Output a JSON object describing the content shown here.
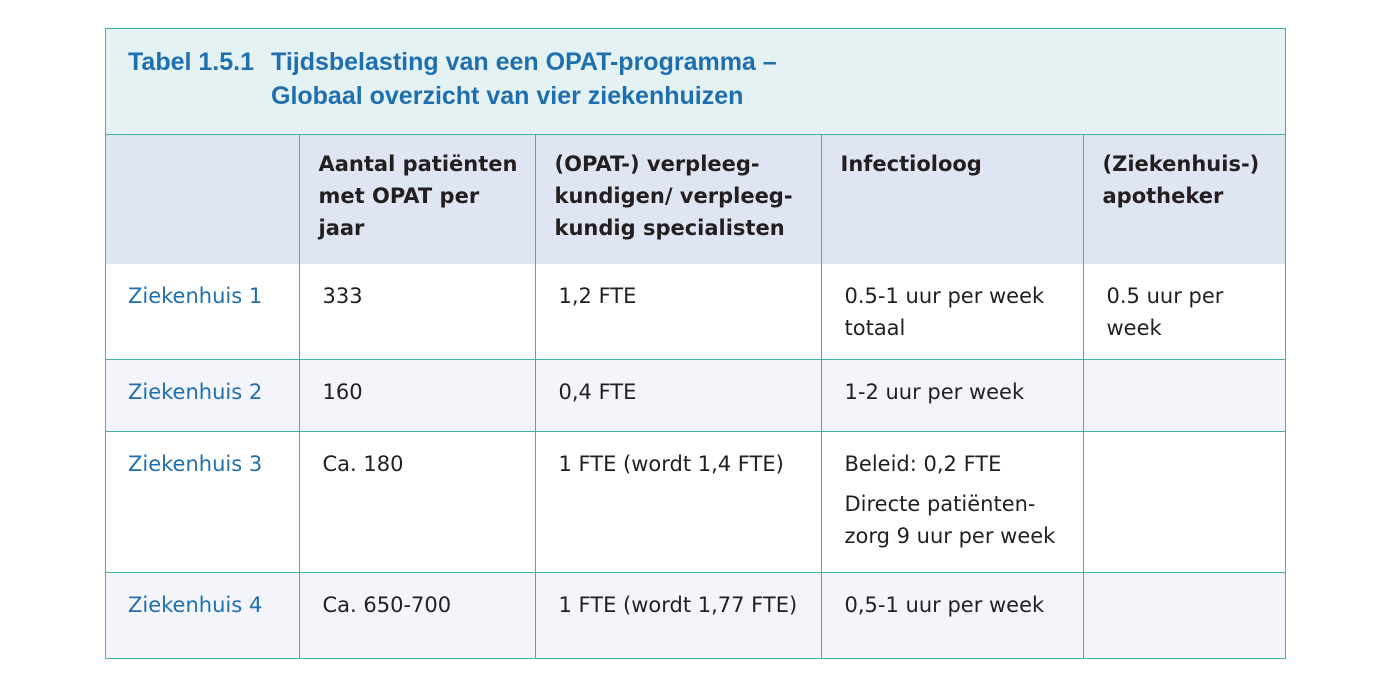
{
  "caption": {
    "number": "Tabel 1.5.1",
    "title_line1": "Tijdsbelasting van een OPAT-programma –",
    "title_line2": "Globaal overzicht van vier ziekenhuizen"
  },
  "columns": [
    "",
    "Aantal patiënten met OPAT per jaar",
    "(OPAT-) verpleeg-kundigen/ verpleeg-kundig specialisten",
    "Infectioloog",
    "(Ziekenhuis-) apotheker"
  ],
  "rows": [
    {
      "hospital": "Ziekenhuis 1",
      "patients": "333",
      "nurses": "1,2 FTE",
      "infectiologist": "0.5-1 uur per week totaal",
      "pharmacist": "0.5 uur per week"
    },
    {
      "hospital": "Ziekenhuis 2",
      "patients": "160",
      "nurses": "0,4 FTE",
      "infectiologist": "1-2 uur per week",
      "pharmacist": ""
    },
    {
      "hospital": "Ziekenhuis 3",
      "patients": "Ca. 180",
      "nurses": "1 FTE (wordt 1,4 FTE)",
      "infectiologist_policy": "Beleid: 0,2 FTE",
      "infectiologist_care": "Directe patiënten-zorg 9 uur per week",
      "pharmacist": ""
    },
    {
      "hospital": "Ziekenhuis 4",
      "patients": "Ca. 650-700",
      "nurses": "1 FTE (wordt 1,77 FTE)",
      "infectiologist": "0,5-1 uur per week",
      "pharmacist": ""
    }
  ]
}
